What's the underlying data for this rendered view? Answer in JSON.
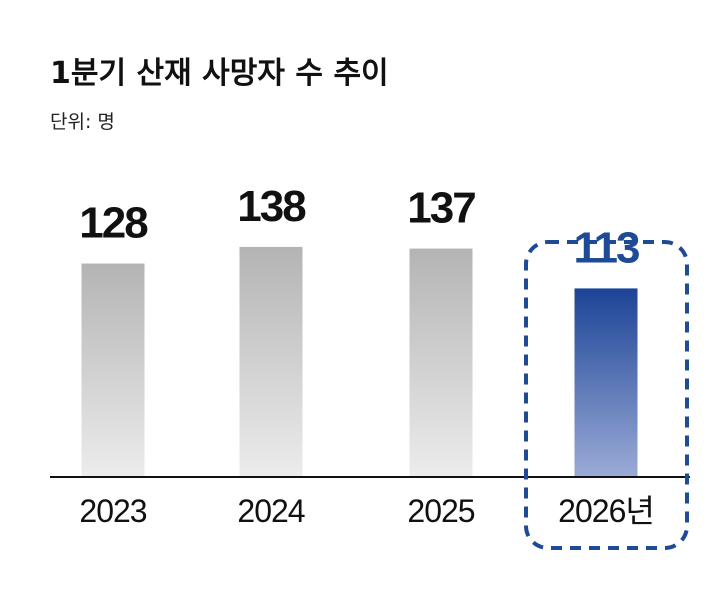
{
  "chart_data": {
    "type": "bar",
    "title": "1분기 산재 사망자 수 추이",
    "subtitle": "단위: 명",
    "categories": [
      "2023",
      "2024",
      "2025",
      "2026년"
    ],
    "values": [
      128,
      138,
      137,
      113
    ],
    "ylim": [
      0,
      150
    ],
    "highlight_index": 3,
    "grid": false,
    "legend": "none"
  },
  "colors": {
    "bar_gray_top": "#b4b4b4",
    "bar_gray_bottom": "#ececec",
    "bar_blue_top": "#1c4496",
    "bar_blue_bottom": "#9aaad6",
    "highlight": "#1f4a96",
    "label_dark": "#111111",
    "axis": "#111111"
  }
}
